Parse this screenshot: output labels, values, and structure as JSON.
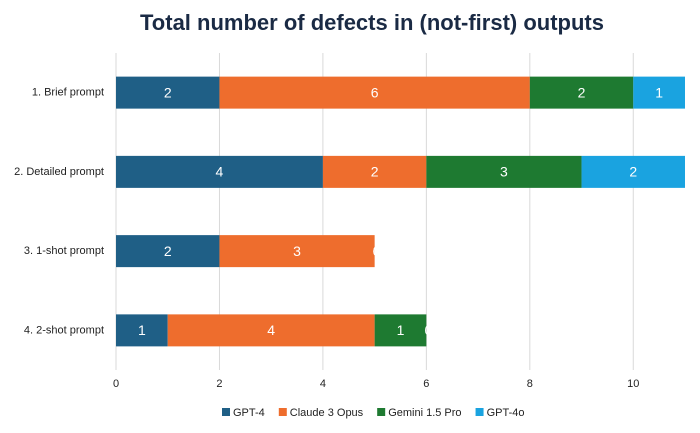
{
  "chart_data": {
    "type": "stacked-barh",
    "title": "Total number of defects in (not-first) outputs",
    "categories": [
      "1. Brief prompt",
      "2. Detailed prompt",
      "3. 1-shot prompt",
      "4. 2-shot prompt"
    ],
    "series": [
      {
        "name": "GPT-4",
        "color": "#1f5f86",
        "values": [
          2,
          4,
          2,
          1
        ]
      },
      {
        "name": "Claude 3 Opus",
        "color": "#ee6d2d",
        "values": [
          6,
          2,
          3,
          4
        ]
      },
      {
        "name": "Gemini 1.5 Pro",
        "color": "#1e7a31",
        "values": [
          2,
          3,
          0,
          1
        ]
      },
      {
        "name": "GPT-4o",
        "color": "#1aa3e0",
        "values": [
          1,
          2,
          0,
          0
        ]
      }
    ],
    "xlim": [
      0,
      11
    ],
    "xticks": [
      0,
      2,
      4,
      6,
      8,
      10
    ],
    "grid": true,
    "legend": "bottom"
  }
}
